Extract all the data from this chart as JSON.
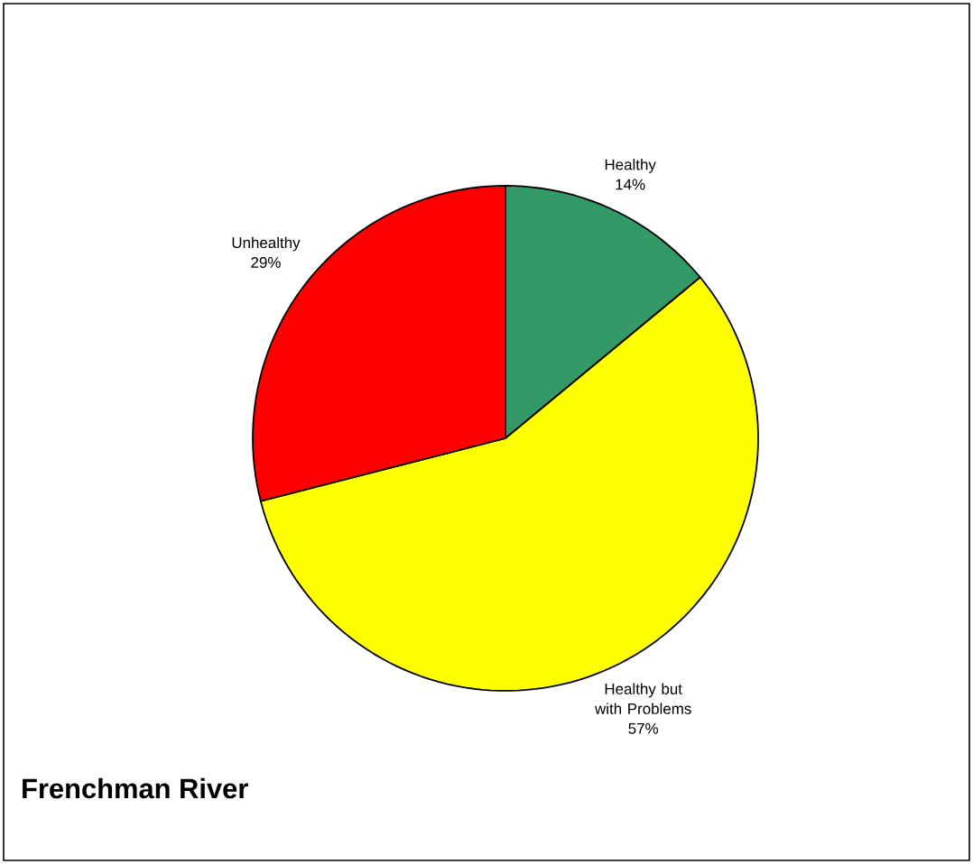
{
  "chart_data": {
    "type": "pie",
    "title": "Frenchman River",
    "categories": [
      "Healthy",
      "Healthy but with Problems",
      "Unhealthy"
    ],
    "values": [
      14,
      57,
      29
    ],
    "value_labels": [
      "14%",
      "57%",
      "29%"
    ],
    "colors": [
      "#339966",
      "#ffff00",
      "#ff0000"
    ]
  }
}
